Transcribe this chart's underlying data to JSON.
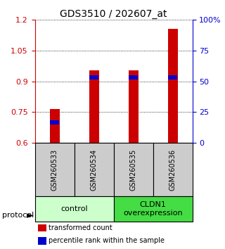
{
  "title": "GDS3510 / 202607_at",
  "samples": [
    "GSM260533",
    "GSM260534",
    "GSM260535",
    "GSM260536"
  ],
  "transformed_counts": [
    0.765,
    0.955,
    0.955,
    1.155
  ],
  "percentile_ranks": [
    0.7,
    0.92,
    0.92,
    0.92
  ],
  "ylim_left": [
    0.6,
    1.2
  ],
  "yticks_left": [
    0.6,
    0.75,
    0.9,
    1.05,
    1.2
  ],
  "yticks_right": [
    0,
    25,
    50,
    75,
    100
  ],
  "ytick_right_labels": [
    "0",
    "25",
    "50",
    "75",
    "100%"
  ],
  "bar_color": "#cc0000",
  "marker_color": "#0000cc",
  "groups": [
    {
      "label": "control",
      "samples": [
        0,
        1
      ],
      "color": "#ccffcc"
    },
    {
      "label": "CLDN1\noverexpression",
      "samples": [
        2,
        3
      ],
      "color": "#44dd44"
    }
  ],
  "protocol_label": "protocol",
  "legend_items": [
    {
      "color": "#cc0000",
      "label": "transformed count"
    },
    {
      "color": "#0000cc",
      "label": "percentile rank within the sample"
    }
  ],
  "sample_box_color": "#cccccc",
  "background_color": "#ffffff",
  "bar_width": 0.25
}
